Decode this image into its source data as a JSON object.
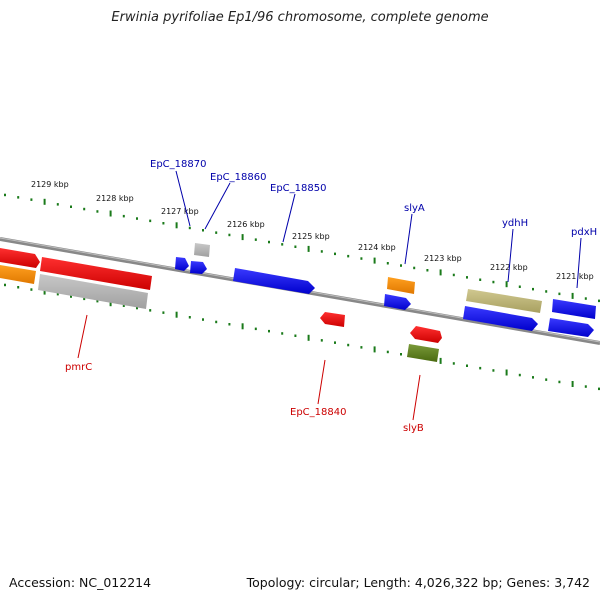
{
  "title": "Erwinia pyrifoliae Ep1/96 chromosome, complete genome",
  "footer": {
    "accession": "Accession: NC_012214",
    "summary": "Topology: circular; Length: 4,026,322 bp; Genes: 3,742"
  },
  "ticks": [
    "2129 kbp",
    "2128 kbp",
    "2127 kbp",
    "2126 kbp",
    "2125 kbp",
    "2124 kbp",
    "2123 kbp",
    "2122 kbp",
    "2121 kbp"
  ],
  "gene_labels": {
    "forward": [
      "EpC_18870",
      "EpC_18860",
      "EpC_18850",
      "slyA",
      "ydhH",
      "pdxH"
    ],
    "reverse": [
      "pmrC",
      "EpC_18840",
      "slyB"
    ]
  },
  "colors": {
    "forward_label": "#0000aa",
    "reverse_label": "#cc0000",
    "tick": "#1a7a1a",
    "backbone": "#888888",
    "blue": "#0000ee",
    "red": "#ee0000",
    "orange": "#ff8c00",
    "grey": "#b0b0b0",
    "olive": "#b8b070",
    "green": "#5a7a1a"
  }
}
